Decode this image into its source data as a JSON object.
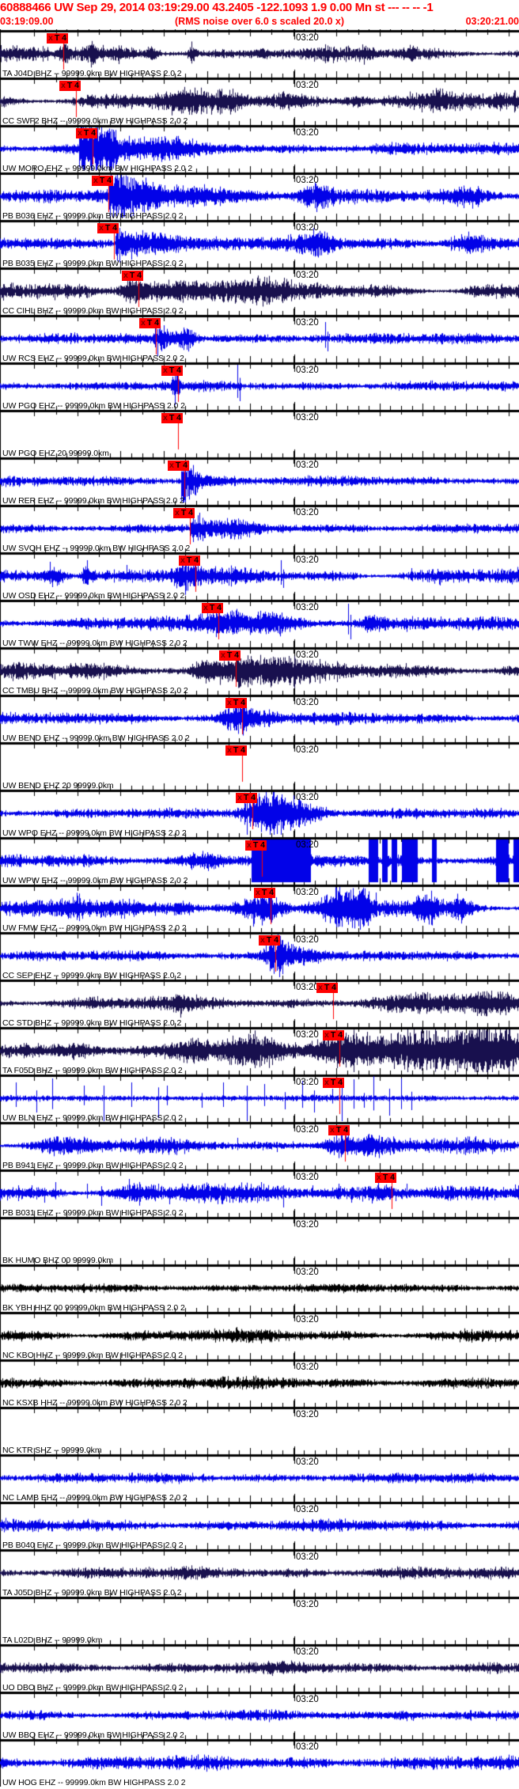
{
  "header": {
    "event_line": "60888466 UW Sep 29, 2014 03:19:29.00   43.2405 -122.1093  1.9 0.00 Mn st --- -- --  -1",
    "start_time": "03:19:09.00",
    "rms_note": "(RMS noise over 6.0 s scaled 20.0 x)",
    "end_time": "03:20:21.00",
    "minute_label": "03:20",
    "header_color": "#ff0000"
  },
  "pick_flag": {
    "x_glyph": "x",
    "label": "T 4",
    "bg": "#ff0000",
    "line_color": "#ff0000"
  },
  "colors": {
    "blue": "#0202e8",
    "dark": "#18104e",
    "black": "#000000"
  },
  "traces": [
    {
      "label": "TA J04D BHZ -- 99999.0km BW  HIGHPASS  2.0  2",
      "color": "dark",
      "flag": 80,
      "wave": {
        "b": 4.5,
        "lum": 0.9,
        "bursts": [
          [
            82,
            6,
            6
          ],
          [
            118,
            9,
            6
          ],
          [
            150,
            5,
            4
          ],
          [
            192,
            7,
            7
          ],
          [
            243,
            5,
            9
          ],
          [
            330,
            10,
            4
          ],
          [
            460,
            8,
            4
          ],
          [
            520,
            6,
            4
          ]
        ],
        "spikes": [
          [
            80,
            14
          ]
        ]
      }
    },
    {
      "label": "CC SWF2 BHZ -- 99999.0km BW  HIGHPASS  2.0  2",
      "color": "dark",
      "flag": 96,
      "wave": {
        "b": 5.5,
        "lum": 1,
        "bursts": [
          [
            225,
            25,
            5
          ],
          [
            290,
            20,
            6
          ],
          [
            360,
            25,
            5
          ],
          [
            450,
            15,
            5
          ],
          [
            560,
            20,
            4
          ]
        ]
      }
    },
    {
      "label": "UW MORO EHZ -- 99999.0km BW  HIGHPASS  2.0  2",
      "color": "blue",
      "flag": 117,
      "wave": {
        "b": 4,
        "lum": 0.6,
        "decays": [
          [
            100,
            55,
            20
          ]
        ],
        "bursts": [
          [
            128,
            22,
            12
          ],
          [
            210,
            30,
            5
          ]
        ],
        "spikes": [
          [
            117,
            22
          ]
        ]
      }
    },
    {
      "label": "PB B036 EHZ -- 99999.0km BW  HIGHPASS  2.0  2",
      "color": "blue",
      "flag": 137,
      "wave": {
        "b": 4.5,
        "lum": 0.6,
        "decays": [
          [
            138,
            65,
            24
          ]
        ],
        "bursts": [
          [
            260,
            30,
            4
          ],
          [
            400,
            22,
            9
          ],
          [
            592,
            25,
            7
          ]
        ]
      }
    },
    {
      "label": "PB B035 EHZ -- 99999.0km BW  HIGHPASS  2.0  2",
      "color": "blue",
      "flag": 144,
      "wave": {
        "b": 4.5,
        "lum": 0.6,
        "decays": [
          [
            146,
            60,
            17
          ]
        ],
        "bursts": [
          [
            400,
            22,
            9
          ],
          [
            592,
            25,
            7
          ]
        ]
      }
    },
    {
      "label": "CC CIHL BHZ -- 99999.0km BW  HIGHPASS  2.0  2",
      "color": "dark",
      "flag": 175,
      "wave": {
        "b": 5.5,
        "lum": 1,
        "bursts": [
          [
            170,
            15,
            8
          ],
          [
            200,
            50,
            7
          ],
          [
            300,
            60,
            6
          ]
        ],
        "spikes": [
          [
            175,
            14
          ]
        ]
      }
    },
    {
      "label": "UW RCS EHZ -- 99999.0km BW  HIGHPASS  2.0  2",
      "color": "blue",
      "flag": 197,
      "wave": {
        "b": 4,
        "lum": 0.5,
        "bursts": [
          [
            205,
            8,
            10
          ],
          [
            235,
            12,
            8
          ]
        ],
        "spikes": [
          [
            196,
            20
          ],
          [
            199,
            -22
          ],
          [
            202,
            16
          ],
          [
            236,
            13
          ],
          [
            240,
            -12
          ],
          [
            411,
            21
          ],
          [
            414,
            -16
          ]
        ]
      }
    },
    {
      "label": "UW PGO EHZ -- 99999.0km BW  HIGHPASS  2.0  2",
      "color": "blue",
      "flag": 225,
      "wave": {
        "b": 3.5,
        "lum": 0.5,
        "bursts": [
          [
            222,
            6,
            8
          ]
        ],
        "spikes": [
          [
            218,
            12
          ],
          [
            221,
            -24
          ],
          [
            224,
            18
          ],
          [
            300,
            27
          ],
          [
            303,
            -19
          ]
        ]
      }
    },
    {
      "label": "UW PGO EHZ 20 99999.0km",
      "color": "blue",
      "flag": 225,
      "wave": {
        "blank": true
      }
    },
    {
      "label": "UW RER EHZ -- 99999.0km BW  HIGHPASS  2.0  2",
      "color": "blue",
      "flag": 233,
      "wave": {
        "b": 3.5,
        "lum": 0.5,
        "decays": [
          [
            229,
            20,
            26
          ]
        ],
        "spikes": [
          [
            231,
            -27
          ],
          [
            234,
            25
          ]
        ]
      }
    },
    {
      "label": "UW SVQH EHZ -- 99999.0km BW  HIGHPASS  2.0  2",
      "color": "blue",
      "flag": 240,
      "wave": {
        "b": 3.5,
        "lum": 0.5,
        "decays": [
          [
            240,
            35,
            12
          ]
        ],
        "bursts": [
          [
            300,
            25,
            4
          ]
        ],
        "spikes": [
          [
            252,
            20
          ],
          [
            256,
            -16
          ]
        ]
      }
    },
    {
      "label": "UW OSD EHZ -- 99999.0km BW  HIGHPASS  2.0  2",
      "color": "blue",
      "flag": 247,
      "wave": {
        "b": 5,
        "lum": 1,
        "bursts": [
          [
            70,
            15,
            8
          ],
          [
            110,
            8,
            8
          ],
          [
            235,
            15,
            10
          ]
        ],
        "spikes": [
          [
            63,
            18
          ],
          [
            66,
            -14
          ],
          [
            110,
            20
          ],
          [
            160,
            14
          ],
          [
            230,
            22
          ],
          [
            234,
            -18
          ],
          [
            246,
            15
          ],
          [
            355,
            20
          ],
          [
            358,
            -15
          ],
          [
            520,
            10
          ]
        ]
      }
    },
    {
      "label": "UW TWW EHZ -- 99999.0km BW  HIGHPASS  2.0  2",
      "color": "blue",
      "flag": 276,
      "wave": {
        "b": 4.5,
        "lum": 0.7,
        "bursts": [
          [
            295,
            45,
            9
          ],
          [
            350,
            30,
            6
          ],
          [
            470,
            12,
            7
          ]
        ],
        "spikes": [
          [
            440,
            25
          ],
          [
            443,
            -20
          ]
        ]
      }
    },
    {
      "label": "CC TMBU BHZ -- 99999.0km BW  HIGHPASS  2.0  2",
      "color": "dark",
      "flag": 298,
      "wave": {
        "b": 5.5,
        "lum": 0.8,
        "bursts": [
          [
            260,
            15,
            6
          ],
          [
            305,
            35,
            12
          ],
          [
            355,
            35,
            8
          ]
        ]
      }
    },
    {
      "label": "UW BEND EHZ -- 99999.0km BW  HIGHPASS  2.0  2",
      "color": "blue",
      "flag": 306,
      "wave": {
        "b": 4,
        "lum": 0.6,
        "bursts": [
          [
            300,
            18,
            12
          ],
          [
            330,
            25,
            5
          ]
        ],
        "spikes": [
          [
            296,
            -15
          ],
          [
            299,
            13
          ]
        ]
      }
    },
    {
      "label": "UW BEND EHZ 20 99999.0km",
      "color": "blue",
      "flag": 306,
      "wave": {
        "blank": true
      }
    },
    {
      "label": "UW WPO EHZ -- 99999.0km BW  HIGHPASS  2.0  2",
      "color": "blue",
      "flag": 319,
      "wave": {
        "b": 3.5,
        "lum": 0.5,
        "bursts": [
          [
            338,
            28,
            20
          ],
          [
            380,
            30,
            9
          ]
        ],
        "spikes": [
          [
            309,
            26
          ],
          [
            312,
            -27
          ],
          [
            315,
            22
          ]
        ]
      }
    },
    {
      "label": "UW WPW EHZ -- 99999.0km BW  HIGHPASS  2.0  2",
      "color": "blue",
      "flag": 331,
      "wave": {
        "b": 4.5,
        "lum": 0.6,
        "bursts": [
          [
            255,
            25,
            6
          ]
        ],
        "blocks": [
          [
            318,
            393
          ],
          [
            466,
            478
          ],
          [
            483,
            490
          ],
          [
            495,
            502
          ],
          [
            508,
            528
          ],
          [
            546,
            552
          ],
          [
            627,
            643
          ],
          [
            649,
            656
          ]
        ],
        "wavy": [
          [
            396,
            462,
            5,
            22
          ]
        ]
      }
    },
    {
      "label": "UW FMW EHZ -- 99999.0km BW  HIGHPASS  2.0  2",
      "color": "blue",
      "flag": 342,
      "wave": {
        "b": 5.5,
        "lum": 1,
        "bursts": [
          [
            95,
            12,
            6
          ],
          [
            230,
            15,
            6
          ],
          [
            332,
            25,
            14
          ],
          [
            430,
            20,
            14
          ],
          [
            456,
            10,
            16
          ],
          [
            540,
            15,
            10
          ],
          [
            582,
            12,
            8
          ]
        ],
        "spikes": [
          [
            475,
            20
          ]
        ]
      }
    },
    {
      "label": "CC SEP EHZ -- 99999.0km BW  HIGHPASS  2.0  2",
      "color": "blue",
      "flag": 348,
      "wave": {
        "b": 3.5,
        "lum": 0.5,
        "bursts": [
          [
            352,
            18,
            17
          ],
          [
            385,
            25,
            5
          ]
        ]
      }
    },
    {
      "label": "CC STD BHZ -- 99999.0km BW  HIGHPASS  2.0  2",
      "color": "dark",
      "flag": 421,
      "wave": {
        "b": 4.5,
        "lum": 0.8,
        "bursts": [
          [
            225,
            10,
            6
          ],
          [
            530,
            60,
            5
          ],
          [
            620,
            35,
            7
          ]
        ]
      }
    },
    {
      "label": "TA F05D BHZ -- 99999.0km BW  HIGHPASS  2.0  2",
      "color": "dark",
      "flag": 429,
      "wave": {
        "b": 5.5,
        "lum": 0.9,
        "bursts": [
          [
            100,
            30,
            6
          ],
          [
            245,
            25,
            8
          ],
          [
            320,
            30,
            10
          ],
          [
            440,
            40,
            14
          ],
          [
            530,
            50,
            20
          ],
          [
            620,
            40,
            24
          ]
        ]
      }
    },
    {
      "label": "UW BLN EHZ -- 99999.0km BW  HIGHPASS  2.0  2",
      "color": "blue",
      "flag": 429,
      "wave": {
        "b": 2.5,
        "lum": 0.3,
        "spikes": [
          [
            20,
            20
          ],
          [
            46,
            -18
          ],
          [
            66,
            25
          ],
          [
            106,
            16
          ],
          [
            131,
            -38
          ],
          [
            166,
            20
          ],
          [
            200,
            -25
          ],
          [
            211,
            16
          ],
          [
            255,
            -12
          ],
          [
            282,
            20
          ],
          [
            312,
            -35
          ],
          [
            334,
            18
          ],
          [
            360,
            -14
          ],
          [
            382,
            22
          ],
          [
            397,
            -18
          ],
          [
            420,
            12
          ],
          [
            432,
            -30
          ],
          [
            447,
            24
          ],
          [
            460,
            -12
          ],
          [
            472,
            28
          ],
          [
            492,
            -22
          ],
          [
            507,
            25
          ],
          [
            520,
            -15
          ]
        ]
      }
    },
    {
      "label": "PB B941 EHZ -- 99999.0km BW  HIGHPASS  2.0  2",
      "color": "blue",
      "flag": 436,
      "wave": {
        "b": 5,
        "lum": 0.9,
        "bursts": [
          [
            80,
            30,
            4
          ],
          [
            430,
            22,
            8
          ],
          [
            470,
            15,
            5
          ]
        ],
        "spikes": [
          [
            300,
            10
          ],
          [
            350,
            -8
          ]
        ]
      }
    },
    {
      "label": "PB B031 EHZ -- 99999.0km BW  HIGHPASS  2.0  2",
      "color": "blue",
      "flag": 495,
      "wave": {
        "b": 5.5,
        "lum": 0.8,
        "bursts": [
          [
            170,
            20,
            5
          ],
          [
            250,
            30,
            4
          ],
          [
            480,
            30,
            6
          ]
        ],
        "spikes": [
          [
            40,
            10
          ],
          [
            56,
            -12
          ],
          [
            70,
            14
          ],
          [
            110,
            12
          ],
          [
            128,
            -16
          ],
          [
            163,
            18
          ],
          [
            200,
            12
          ],
          [
            214,
            -14
          ],
          [
            255,
            10
          ],
          [
            290,
            -12
          ],
          [
            330,
            14
          ],
          [
            358,
            -18
          ],
          [
            395,
            10
          ],
          [
            428,
            12
          ],
          [
            444,
            -12
          ],
          [
            478,
            14
          ],
          [
            500,
            -10
          ],
          [
            514,
            12
          ]
        ]
      }
    },
    {
      "label": "BK HUMO BHZ 00 99999.0km",
      "color": "dark",
      "flag": null,
      "wave": {
        "blank": true
      }
    },
    {
      "label": "BK YBH HHZ 00 99999.0km BW  HIGHPASS  2.0  2",
      "color": "black",
      "flag": null,
      "wave": {
        "b": 3.2,
        "lum": 0.5
      }
    },
    {
      "label": "NC KBO HHZ -- 99999.0km BW  HIGHPASS  2.0  2",
      "color": "black",
      "flag": null,
      "wave": {
        "b": 4.2,
        "lum": 0.8
      }
    },
    {
      "label": "NC KSXB HHZ -- 99999.0km BW  HIGHPASS  2.0  2",
      "color": "black",
      "flag": null,
      "wave": {
        "b": 4.2,
        "lum": 0.6
      }
    },
    {
      "label": "NC KTR SHZ -- 99999.0km",
      "color": "black",
      "flag": null,
      "wave": {
        "blank": true
      }
    },
    {
      "label": "NC LAMB EHZ -- 99999.0km BW  HIGHPASS  2.0  2",
      "color": "blue",
      "flag": null,
      "wave": {
        "b": 3.6,
        "lum": 0.5
      }
    },
    {
      "label": "PB B040 EHZ -- 99999.0km BW  HIGHPASS  2.0  2",
      "color": "blue",
      "flag": null,
      "wave": {
        "b": 4.2,
        "lum": 0.6
      }
    },
    {
      "label": "TA J05D BHZ -- 99999.0km BW  HIGHPASS  2.0  2",
      "color": "dark",
      "flag": null,
      "wave": {
        "b": 4.2,
        "lum": 0.6
      }
    },
    {
      "label": "TA L02D BHZ -- 99999.0km",
      "color": "dark",
      "flag": null,
      "wave": {
        "blank": true
      }
    },
    {
      "label": "UO DBO BHZ -- 99999.0km BW  HIGHPASS  2.0  2",
      "color": "dark",
      "flag": null,
      "wave": {
        "b": 4.2,
        "lum": 0.6
      }
    },
    {
      "label": "UW BBQ EHZ -- 99999.0km BW  HIGHPASS  2.0  2",
      "color": "blue",
      "flag": null,
      "wave": {
        "b": 3.6,
        "lum": 0.6,
        "bursts": [
          [
            510,
            25,
            3
          ]
        ]
      }
    },
    {
      "label": "UW HOG EHZ -- 99999.0km BW  HIGHPASS  2.0  2",
      "color": "blue",
      "flag": null,
      "wave": {
        "b": 5,
        "lum": 0.6
      }
    }
  ]
}
